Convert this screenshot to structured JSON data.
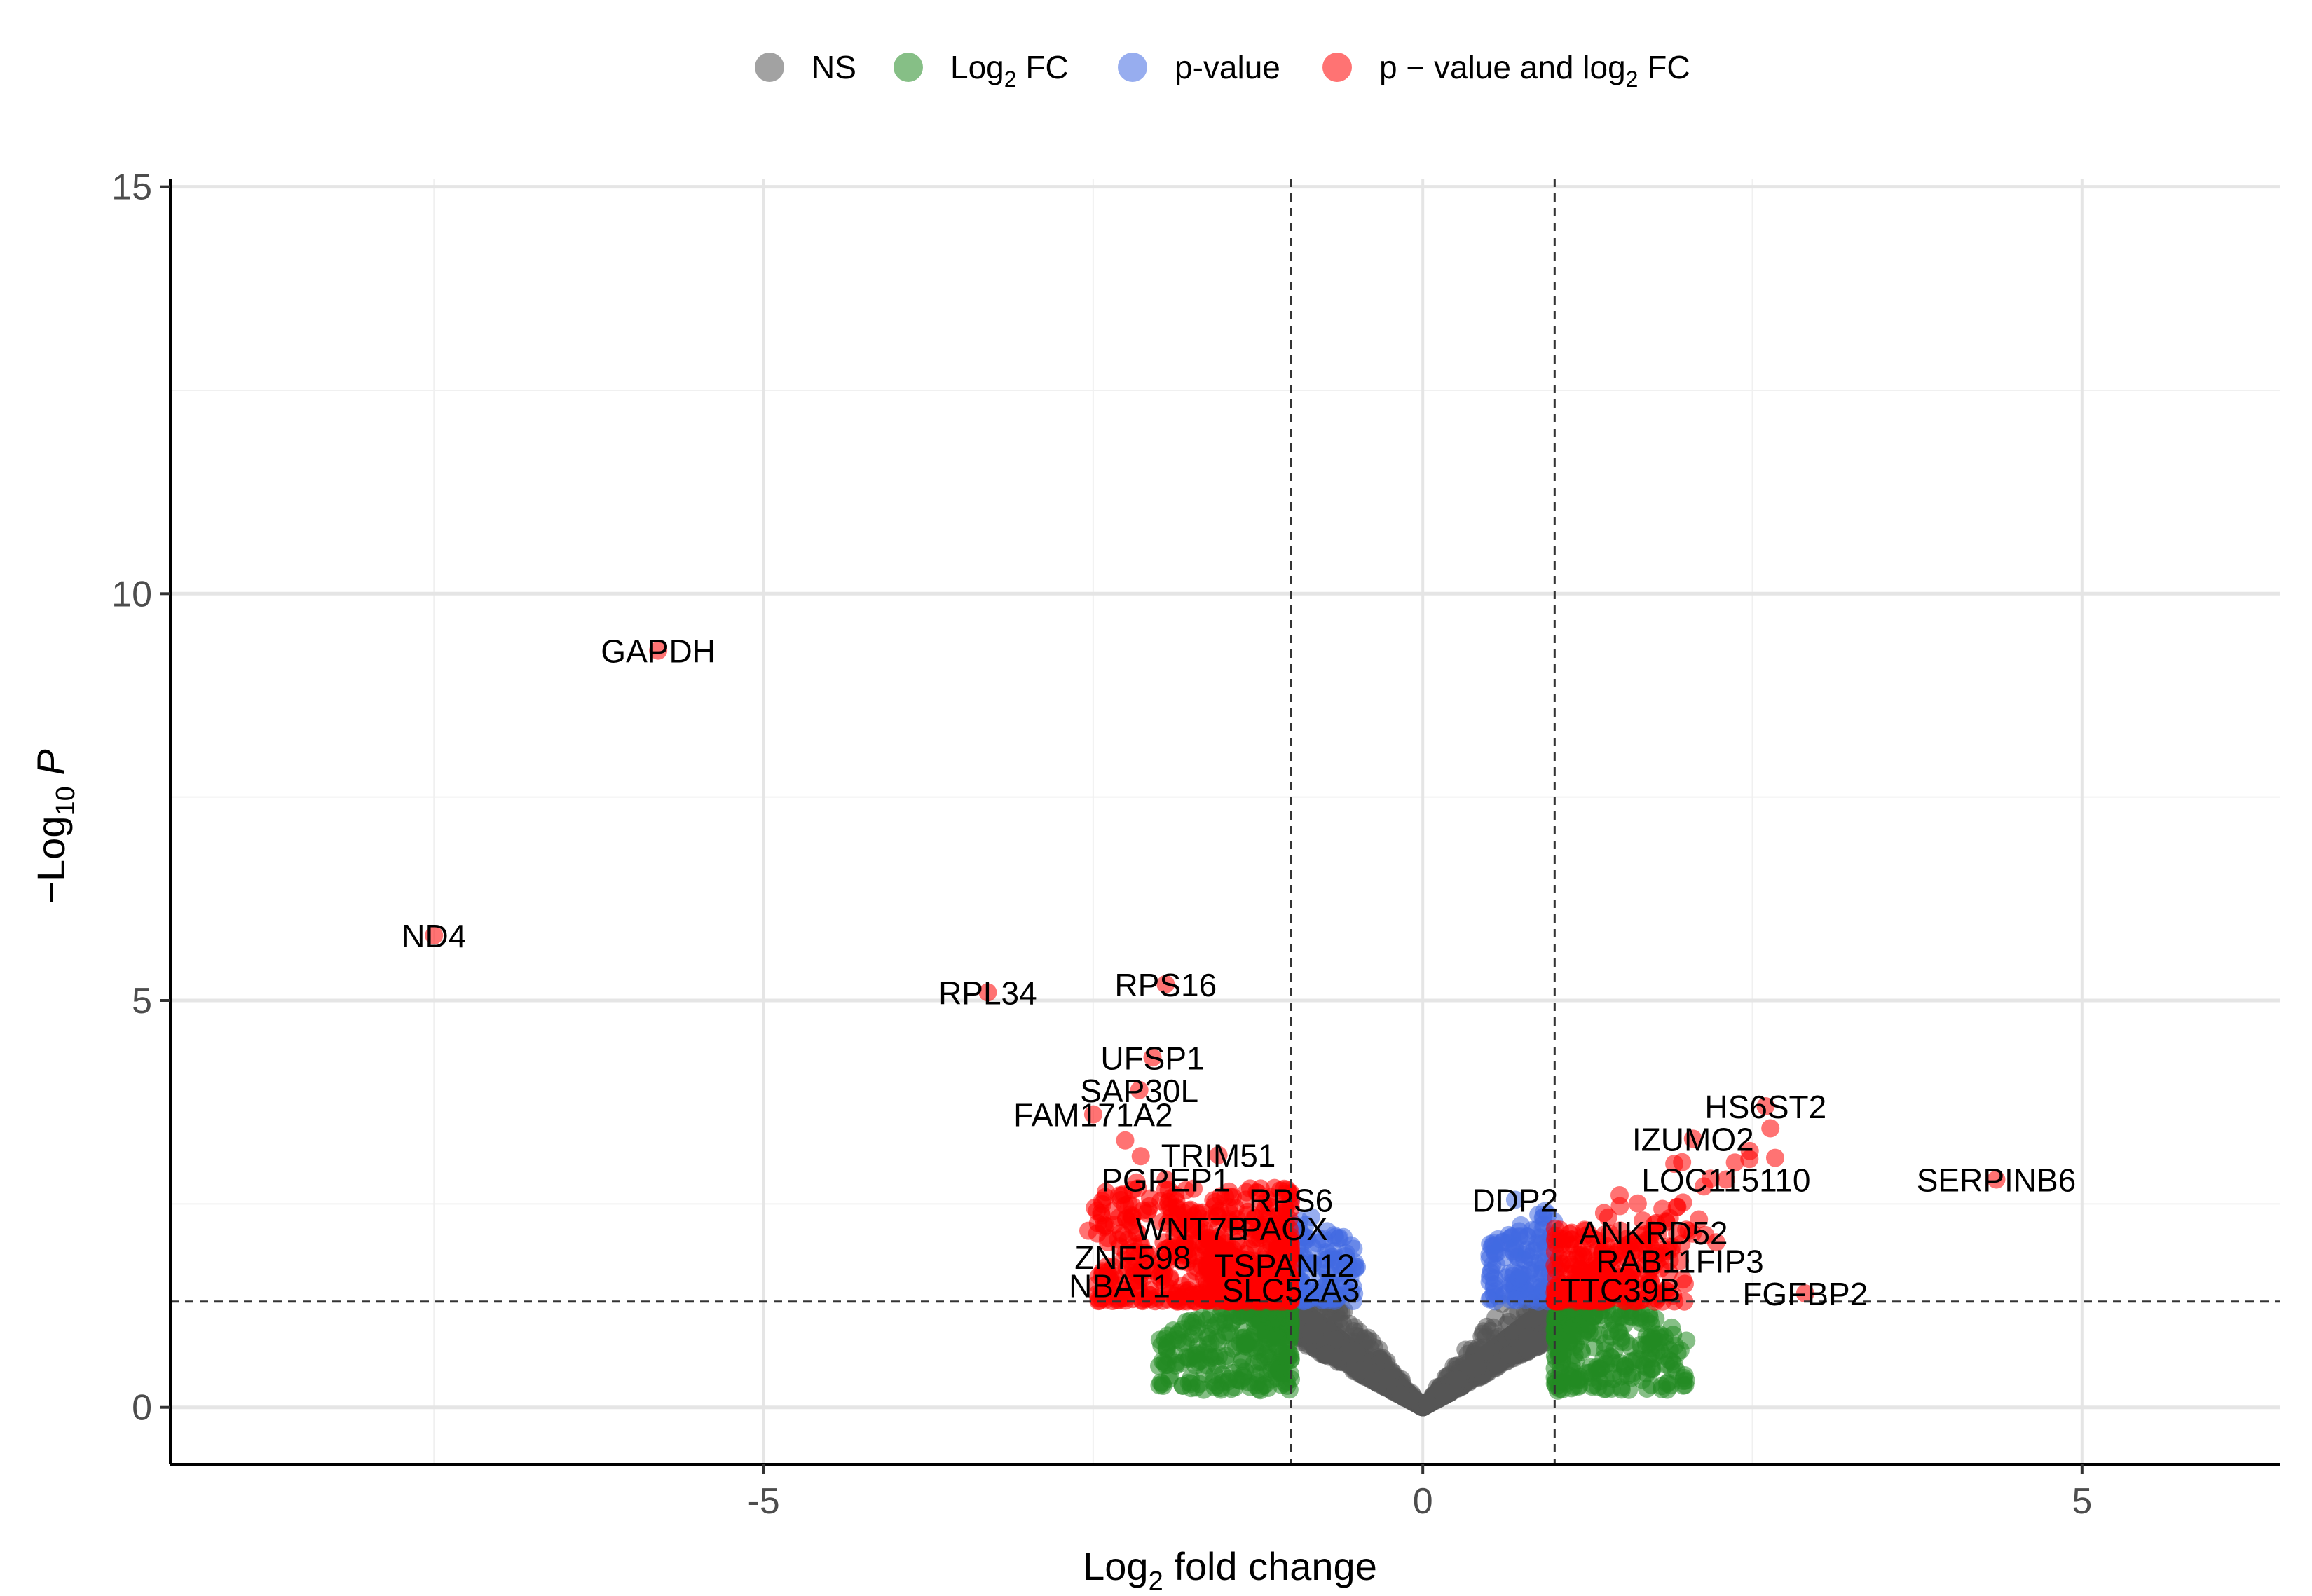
{
  "chart_data": {
    "type": "scatter",
    "subtype": "volcano",
    "title": "",
    "xlabel": {
      "main": "Log",
      "sub": "2",
      "rest": " fold change"
    },
    "ylabel": {
      "prefix": "−Log",
      "sub": "10",
      "italic": " P"
    },
    "xlim": [
      -9.5,
      6.5
    ],
    "ylim": [
      -0.7,
      15.1
    ],
    "x_ticks": [
      -5,
      0,
      5
    ],
    "x_tick_labels": [
      "-5",
      "0",
      "5"
    ],
    "y_ticks": [
      0,
      5,
      10,
      15
    ],
    "y_tick_labels": [
      "0",
      "5",
      "10",
      "15"
    ],
    "grid": true,
    "thresholds": {
      "log2fc": [
        -1,
        1
      ],
      "neg_log10_p": 1.3
    },
    "legend": {
      "position": "top",
      "items": [
        {
          "key": "ns",
          "label": "NS",
          "color": "#555555"
        },
        {
          "key": "fc",
          "label_main": "Log",
          "label_sub": "2",
          "label_rest": " FC",
          "color": "#228B22"
        },
        {
          "key": "p",
          "label": "p-value",
          "color": "#4169E1"
        },
        {
          "key": "pfc",
          "label_main": "p − value and log",
          "label_sub": "2",
          "label_rest": " FC",
          "color": "#FF0000"
        }
      ]
    },
    "colors": {
      "ns": "#555555",
      "fc": "#228B22",
      "p": "#4169E1",
      "pfc": "#FF0000",
      "threshold_line": "#333333",
      "grid": "#e5e5e5"
    },
    "labeled_points": [
      {
        "gene": "GAPDH",
        "x": -5.8,
        "y": 9.3
      },
      {
        "gene": "ND4",
        "x": -7.5,
        "y": 5.8
      },
      {
        "gene": "RPL34",
        "x": -3.3,
        "y": 5.1
      },
      {
        "gene": "RPS16",
        "x": -1.95,
        "y": 5.2
      },
      {
        "gene": "UFSP1",
        "x": -2.05,
        "y": 4.3
      },
      {
        "gene": "SAP30L",
        "x": -2.15,
        "y": 3.9
      },
      {
        "gene": "FAM171A2",
        "x": -2.5,
        "y": 3.6
      },
      {
        "gene": "TRIM51",
        "x": -1.55,
        "y": 3.1
      },
      {
        "gene": "PGPEP1",
        "x": -1.95,
        "y": 2.8
      },
      {
        "gene": "RPS6",
        "x": -1.0,
        "y": 2.55
      },
      {
        "gene": "WNT7B",
        "x": -1.75,
        "y": 2.2
      },
      {
        "gene": "PAOX",
        "x": -1.05,
        "y": 2.2
      },
      {
        "gene": "ZNF598",
        "x": -2.2,
        "y": 1.85
      },
      {
        "gene": "TSPAN12",
        "x": -1.05,
        "y": 1.75
      },
      {
        "gene": "NBAT1",
        "x": -2.3,
        "y": 1.5
      },
      {
        "gene": "SLC52A3",
        "x": -1.0,
        "y": 1.45
      },
      {
        "gene": "HS6ST2",
        "x": 2.6,
        "y": 3.7
      },
      {
        "gene": "IZUMO2",
        "x": 2.05,
        "y": 3.3
      },
      {
        "gene": "LOC115110",
        "x": 2.3,
        "y": 2.8
      },
      {
        "gene": "SERPINB6",
        "x": 4.35,
        "y": 2.8
      },
      {
        "gene": "DDP2",
        "x": 0.7,
        "y": 2.55
      },
      {
        "gene": "ANKRD52",
        "x": 1.75,
        "y": 2.15
      },
      {
        "gene": "RAB11FIP3",
        "x": 1.95,
        "y": 1.8
      },
      {
        "gene": "TTC39B",
        "x": 1.5,
        "y": 1.45
      },
      {
        "gene": "FGFBP2",
        "x": 2.9,
        "y": 1.4
      }
    ]
  }
}
